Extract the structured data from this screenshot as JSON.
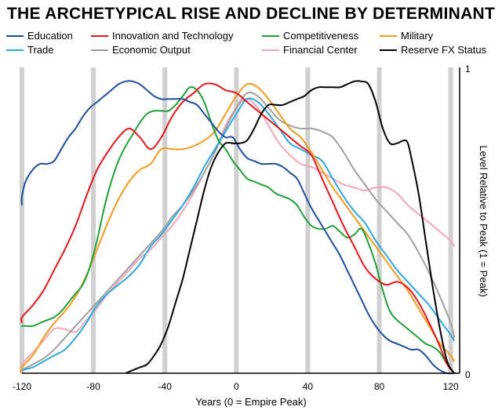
{
  "chart_data": {
    "type": "line",
    "title": "THE ARCHETYPICAL RISE AND DECLINE BY DETERMINANT",
    "xlabel": "Years (0 = Empire Peak)",
    "ylabel": "Level Relative to Peak (1 = Peak)",
    "xlim": [
      -120,
      125
    ],
    "ylim": [
      0,
      1
    ],
    "xticks": [
      -120,
      -80,
      -40,
      0,
      40,
      80,
      120
    ],
    "xtick_labels": [
      "-120",
      "-80",
      "-40",
      "0",
      "40",
      "80",
      "120"
    ],
    "yticks": [
      0,
      1
    ],
    "ytick_labels": [
      "0",
      "1"
    ],
    "vertical_gridlines": [
      -120,
      -80,
      -40,
      0,
      40,
      80,
      120
    ],
    "legend_position": "top",
    "series": [
      {
        "name": "Education",
        "color": "#1f4e9c",
        "x": [
          -126,
          -122,
          -118,
          -114,
          -110,
          -106,
          -102,
          -98,
          -94,
          -90,
          -86,
          -82,
          -78,
          -74,
          -70,
          -66,
          -62,
          -58,
          -54,
          -50,
          -46,
          -42,
          -38,
          -34,
          -30,
          -26,
          -22,
          -18,
          -14,
          -10,
          -6,
          -2,
          2,
          6,
          10,
          14,
          18,
          22,
          26,
          30,
          34,
          38,
          42,
          46,
          50,
          54,
          58,
          62,
          66,
          70,
          74,
          78,
          82,
          86,
          90,
          94,
          98,
          102,
          106,
          110,
          114,
          118,
          122
        ],
        "values": [
          0.57,
          0.6,
          0.65,
          0.69,
          0.71,
          0.71,
          0.72,
          0.76,
          0.8,
          0.83,
          0.87,
          0.9,
          0.92,
          0.94,
          0.96,
          0.98,
          0.99,
          0.99,
          0.98,
          0.96,
          0.94,
          0.93,
          0.93,
          0.93,
          0.93,
          0.92,
          0.91,
          0.88,
          0.85,
          0.82,
          0.8,
          0.8,
          0.76,
          0.73,
          0.72,
          0.71,
          0.71,
          0.71,
          0.7,
          0.68,
          0.66,
          0.61,
          0.56,
          0.52,
          0.48,
          0.44,
          0.4,
          0.35,
          0.3,
          0.25,
          0.2,
          0.16,
          0.13,
          0.11,
          0.1,
          0.09,
          0.08,
          0.08,
          0.06,
          0.03,
          0.01,
          0.0,
          0.0
        ]
      },
      {
        "name": "Trade",
        "color": "#2ea8e0",
        "x": [
          -126,
          -120,
          -114,
          -108,
          -102,
          -96,
          -90,
          -84,
          -78,
          -72,
          -66,
          -60,
          -54,
          -48,
          -42,
          -36,
          -30,
          -24,
          -18,
          -12,
          -6,
          0,
          6,
          12,
          18,
          24,
          30,
          36,
          42,
          48,
          54,
          60,
          66,
          72,
          78,
          84,
          90,
          96,
          102,
          108,
          114,
          120,
          122
        ],
        "values": [
          0.0,
          0.01,
          0.02,
          0.04,
          0.06,
          0.08,
          0.12,
          0.17,
          0.23,
          0.27,
          0.3,
          0.33,
          0.37,
          0.43,
          0.47,
          0.52,
          0.57,
          0.63,
          0.7,
          0.76,
          0.82,
          0.88,
          0.93,
          0.92,
          0.88,
          0.83,
          0.78,
          0.76,
          0.74,
          0.72,
          0.66,
          0.6,
          0.55,
          0.51,
          0.45,
          0.4,
          0.35,
          0.31,
          0.27,
          0.23,
          0.18,
          0.13,
          0.11
        ]
      },
      {
        "name": "Innovation and Technology",
        "color": "#e3171c",
        "x": [
          -126,
          -120,
          -114,
          -108,
          -102,
          -96,
          -90,
          -84,
          -78,
          -72,
          -66,
          -60,
          -54,
          -48,
          -42,
          -36,
          -30,
          -24,
          -18,
          -12,
          -6,
          0,
          6,
          12,
          18,
          24,
          30,
          36,
          42,
          48,
          54,
          60,
          66,
          72,
          78,
          84,
          90,
          96,
          102,
          108,
          114,
          118,
          122
        ],
        "values": [
          0.17,
          0.19,
          0.23,
          0.28,
          0.35,
          0.42,
          0.5,
          0.6,
          0.69,
          0.75,
          0.8,
          0.83,
          0.8,
          0.76,
          0.8,
          0.87,
          0.92,
          0.95,
          0.98,
          0.98,
          0.96,
          0.95,
          0.92,
          0.89,
          0.86,
          0.83,
          0.8,
          0.77,
          0.74,
          0.66,
          0.58,
          0.5,
          0.43,
          0.36,
          0.32,
          0.3,
          0.31,
          0.29,
          0.24,
          0.17,
          0.09,
          0.03,
          0.0
        ]
      },
      {
        "name": "Economic Output",
        "color": "#a0a0a0",
        "x": [
          -126,
          -120,
          -114,
          -108,
          -102,
          -96,
          -90,
          -84,
          -78,
          -72,
          -66,
          -60,
          -54,
          -48,
          -42,
          -36,
          -30,
          -24,
          -18,
          -12,
          -6,
          0,
          6,
          12,
          18,
          24,
          30,
          36,
          42,
          48,
          54,
          60,
          66,
          72,
          78,
          84,
          90,
          96,
          102,
          108,
          114,
          120,
          122
        ],
        "values": [
          0.0,
          0.01,
          0.03,
          0.05,
          0.08,
          0.12,
          0.16,
          0.2,
          0.24,
          0.28,
          0.32,
          0.36,
          0.4,
          0.44,
          0.48,
          0.53,
          0.57,
          0.62,
          0.68,
          0.75,
          0.83,
          0.9,
          0.95,
          0.94,
          0.9,
          0.86,
          0.84,
          0.83,
          0.83,
          0.82,
          0.8,
          0.75,
          0.69,
          0.64,
          0.59,
          0.55,
          0.51,
          0.47,
          0.41,
          0.34,
          0.26,
          0.17,
          0.12
        ]
      },
      {
        "name": "Competitiveness",
        "color": "#22a03a",
        "x": [
          -126,
          -122,
          -118,
          -114,
          -110,
          -106,
          -102,
          -98,
          -94,
          -90,
          -86,
          -82,
          -78,
          -74,
          -70,
          -66,
          -62,
          -58,
          -54,
          -50,
          -46,
          -42,
          -38,
          -34,
          -30,
          -26,
          -22,
          -18,
          -14,
          -10,
          -6,
          -2,
          2,
          6,
          10,
          14,
          18,
          22,
          26,
          30,
          34,
          38,
          42,
          46,
          50,
          54,
          58,
          62,
          66,
          70,
          74,
          78,
          82,
          86,
          90,
          94,
          98,
          102,
          106,
          110,
          114,
          118,
          122
        ],
        "values": [
          0.16,
          0.16,
          0.16,
          0.16,
          0.17,
          0.18,
          0.19,
          0.21,
          0.24,
          0.27,
          0.3,
          0.36,
          0.45,
          0.56,
          0.65,
          0.72,
          0.77,
          0.81,
          0.85,
          0.88,
          0.89,
          0.89,
          0.89,
          0.91,
          0.94,
          0.97,
          0.96,
          0.92,
          0.85,
          0.79,
          0.76,
          0.72,
          0.69,
          0.66,
          0.65,
          0.64,
          0.63,
          0.61,
          0.6,
          0.59,
          0.57,
          0.53,
          0.5,
          0.49,
          0.49,
          0.5,
          0.48,
          0.46,
          0.47,
          0.49,
          0.44,
          0.37,
          0.28,
          0.21,
          0.18,
          0.16,
          0.14,
          0.12,
          0.1,
          0.09,
          0.07,
          0.03,
          0.0
        ]
      },
      {
        "name": "Financial Center",
        "color": "#f4a6b4",
        "x": [
          -126,
          -120,
          -114,
          -108,
          -102,
          -96,
          -90,
          -84,
          -78,
          -72,
          -66,
          -60,
          -54,
          -48,
          -42,
          -36,
          -30,
          -24,
          -18,
          -12,
          -6,
          0,
          6,
          12,
          18,
          24,
          30,
          36,
          42,
          48,
          54,
          60,
          66,
          72,
          78,
          84,
          90,
          96,
          102,
          108,
          114,
          120,
          122
        ],
        "values": [
          0.0,
          0.03,
          0.07,
          0.11,
          0.15,
          0.15,
          0.14,
          0.18,
          0.22,
          0.27,
          0.31,
          0.35,
          0.39,
          0.42,
          0.46,
          0.5,
          0.55,
          0.61,
          0.68,
          0.75,
          0.84,
          0.9,
          0.93,
          0.9,
          0.84,
          0.78,
          0.74,
          0.71,
          0.7,
          0.68,
          0.66,
          0.64,
          0.63,
          0.62,
          0.63,
          0.63,
          0.61,
          0.57,
          0.54,
          0.51,
          0.48,
          0.45,
          0.43
        ]
      },
      {
        "name": "Military",
        "color": "#f39a1f",
        "x": [
          -126,
          -120,
          -114,
          -108,
          -102,
          -96,
          -90,
          -84,
          -78,
          -72,
          -66,
          -60,
          -54,
          -48,
          -42,
          -36,
          -30,
          -24,
          -18,
          -12,
          -6,
          0,
          6,
          12,
          18,
          24,
          30,
          36,
          42,
          48,
          54,
          60,
          66,
          72,
          78,
          84,
          90,
          96,
          102,
          108,
          114,
          120,
          122
        ],
        "values": [
          0.0,
          0.02,
          0.06,
          0.12,
          0.17,
          0.21,
          0.26,
          0.33,
          0.42,
          0.51,
          0.59,
          0.65,
          0.69,
          0.71,
          0.76,
          0.76,
          0.76,
          0.77,
          0.79,
          0.82,
          0.88,
          0.94,
          0.98,
          0.97,
          0.93,
          0.88,
          0.83,
          0.8,
          0.75,
          0.69,
          0.63,
          0.58,
          0.53,
          0.48,
          0.43,
          0.38,
          0.33,
          0.28,
          0.22,
          0.16,
          0.1,
          0.06,
          0.04
        ]
      },
      {
        "name": "Reserve FX Status",
        "color": "#000000",
        "x": [
          -62,
          -58,
          -54,
          -50,
          -46,
          -42,
          -38,
          -34,
          -30,
          -26,
          -22,
          -18,
          -14,
          -10,
          -6,
          -2,
          2,
          6,
          10,
          14,
          18,
          22,
          26,
          30,
          34,
          38,
          42,
          46,
          50,
          54,
          58,
          62,
          66,
          70,
          74,
          78,
          82,
          86,
          90,
          94,
          96,
          98,
          102,
          106,
          110,
          114,
          118,
          122
        ],
        "values": [
          0.0,
          0.01,
          0.02,
          0.03,
          0.06,
          0.1,
          0.16,
          0.24,
          0.32,
          0.42,
          0.52,
          0.62,
          0.7,
          0.75,
          0.78,
          0.78,
          0.78,
          0.79,
          0.83,
          0.88,
          0.91,
          0.91,
          0.91,
          0.92,
          0.93,
          0.94,
          0.96,
          0.97,
          0.97,
          0.97,
          0.97,
          0.98,
          0.99,
          0.99,
          0.98,
          0.92,
          0.83,
          0.78,
          0.78,
          0.79,
          0.78,
          0.73,
          0.61,
          0.45,
          0.29,
          0.15,
          0.04,
          0.0
        ]
      }
    ]
  }
}
